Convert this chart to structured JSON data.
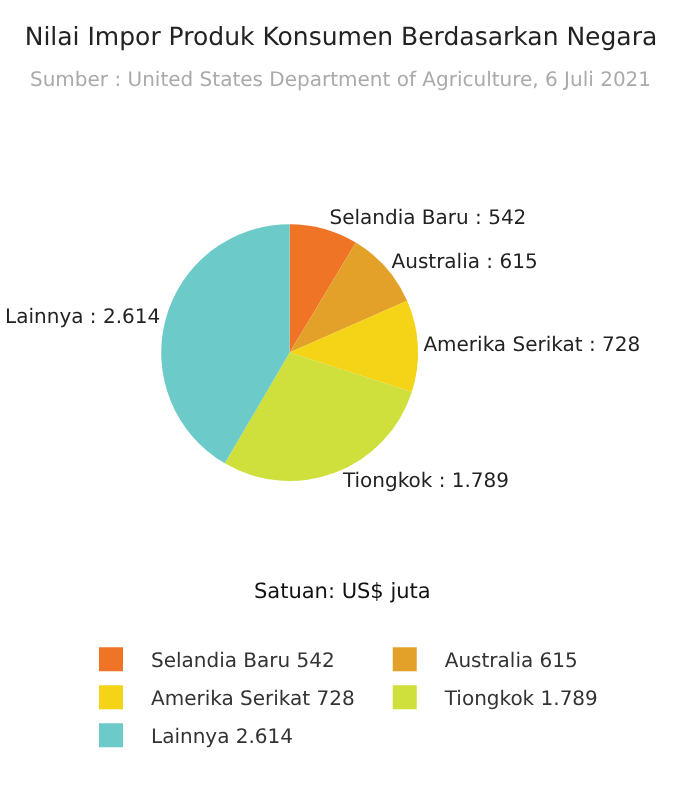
{
  "chart_data": {
    "type": "pie",
    "title": "Nilai Impor Produk Konsumen Berdasarkan Negara",
    "subtitle": "Sumber : United States Department of Agriculture, 6 Juli 2021",
    "categories": [
      "Selandia Baru",
      "Australia",
      "Amerika Serikat",
      "Tiongkok",
      "Lainnya"
    ],
    "values": [
      542,
      615,
      728,
      1789,
      2614
    ],
    "value_labels": [
      "542",
      "615",
      "728",
      "1.789",
      "2.614"
    ],
    "colors": [
      "#f07426",
      "#e3a12a",
      "#f5d316",
      "#cfdf3b",
      "#6ccac8"
    ],
    "annotations": [
      "Satuan: US$ juta"
    ],
    "legend": "bottom"
  }
}
